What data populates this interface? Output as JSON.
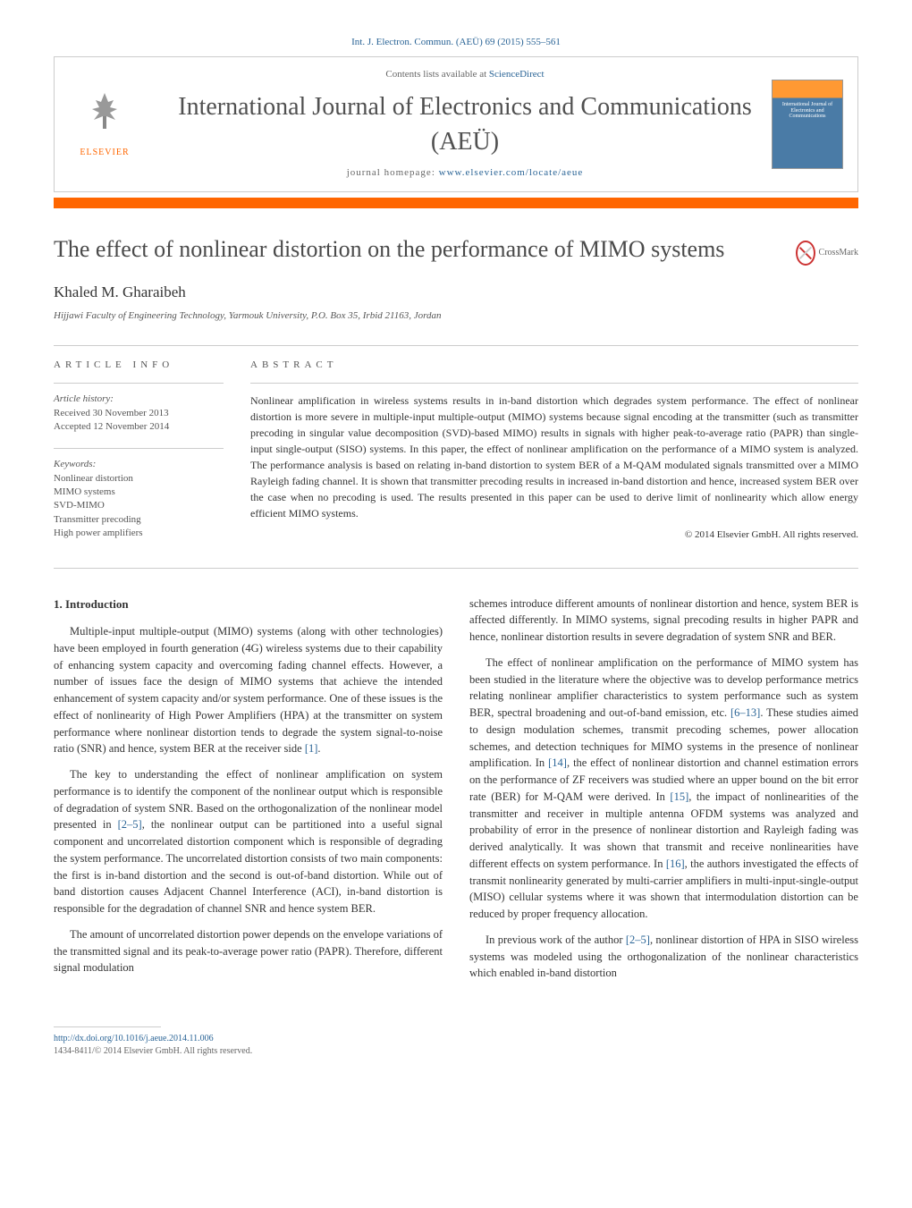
{
  "top_citation": "Int. J. Electron. Commun. (AEÜ) 69 (2015) 555–561",
  "header": {
    "contents_prefix": "Contents lists available at ",
    "contents_link": "ScienceDirect",
    "journal_name": "International Journal of Electronics and Communications (AEÜ)",
    "homepage_prefix": "journal homepage: ",
    "homepage_link": "www.elsevier.com/locate/aeue",
    "publisher": "ELSEVIER",
    "cover_text": "International Journal of Electronics and Communications"
  },
  "crossmark_label": "CrossMark",
  "title": "The effect of nonlinear distortion on the performance of MIMO systems",
  "author": "Khaled M. Gharaibeh",
  "affiliation": "Hijjawi Faculty of Engineering Technology, Yarmouk University, P.O. Box 35, Irbid 21163, Jordan",
  "article_info": {
    "heading": "ARTICLE INFO",
    "history_label": "Article history:",
    "received": "Received 30 November 2013",
    "accepted": "Accepted 12 November 2014",
    "keywords_label": "Keywords:",
    "keywords": [
      "Nonlinear distortion",
      "MIMO systems",
      "SVD-MIMO",
      "Transmitter precoding",
      "High power amplifiers"
    ]
  },
  "abstract": {
    "heading": "ABSTRACT",
    "text": "Nonlinear amplification in wireless systems results in in-band distortion which degrades system performance. The effect of nonlinear distortion is more severe in multiple-input multiple-output (MIMO) systems because signal encoding at the transmitter (such as transmitter precoding in singular value decomposition (SVD)-based MIMO) results in signals with higher peak-to-average ratio (PAPR) than single-input single-output (SISO) systems. In this paper, the effect of nonlinear amplification on the performance of a MIMO system is analyzed. The performance analysis is based on relating in-band distortion to system BER of a M-QAM modulated signals transmitted over a MIMO Rayleigh fading channel. It is shown that transmitter precoding results in increased in-band distortion and hence, increased system BER over the case when no precoding is used. The results presented in this paper can be used to derive limit of nonlinearity which allow energy efficient MIMO systems.",
    "copyright": "© 2014 Elsevier GmbH. All rights reserved."
  },
  "body": {
    "section_heading": "1. Introduction",
    "left_paragraphs": [
      "Multiple-input multiple-output (MIMO) systems (along with other technologies) have been employed in fourth generation (4G) wireless systems due to their capability of enhancing system capacity and overcoming fading channel effects. However, a number of issues face the design of MIMO systems that achieve the intended enhancement of system capacity and/or system performance. One of these issues is the effect of nonlinearity of High Power Amplifiers (HPA) at the transmitter on system performance where nonlinear distortion tends to degrade the system signal-to-noise ratio (SNR) and hence, system BER at the receiver side [1].",
      "The key to understanding the effect of nonlinear amplification on system performance is to identify the component of the nonlinear output which is responsible of degradation of system SNR. Based on the orthogonalization of the nonlinear model presented in [2–5], the nonlinear output can be partitioned into a useful signal component and uncorrelated distortion component which is responsible of degrading the system performance. The uncorrelated distortion consists of two main components: the first is in-band distortion and the second is out-of-band distortion. While out of band distortion causes Adjacent Channel Interference (ACI), in-band distortion is responsible for the degradation of channel SNR and hence system BER.",
      "The amount of uncorrelated distortion power depends on the envelope variations of the transmitted signal and its peak-to-average power ratio (PAPR). Therefore, different signal modulation"
    ],
    "right_paragraphs": [
      "schemes introduce different amounts of nonlinear distortion and hence, system BER is affected differently. In MIMO systems, signal precoding results in higher PAPR and hence, nonlinear distortion results in severe degradation of system SNR and BER.",
      "The effect of nonlinear amplification on the performance of MIMO system has been studied in the literature where the objective was to develop performance metrics relating nonlinear amplifier characteristics to system performance such as system BER, spectral broadening and out-of-band emission, etc. [6–13]. These studies aimed to design modulation schemes, transmit precoding schemes, power allocation schemes, and detection techniques for MIMO systems in the presence of nonlinear amplification. In [14], the effect of nonlinear distortion and channel estimation errors on the performance of ZF receivers was studied where an upper bound on the bit error rate (BER) for M-QAM were derived. In [15], the impact of nonlinearities of the transmitter and receiver in multiple antenna OFDM systems was analyzed and probability of error in the presence of nonlinear distortion and Rayleigh fading was derived analytically. It was shown that transmit and receive nonlinearities have different effects on system performance. In [16], the authors investigated the effects of transmit nonlinearity generated by multi-carrier amplifiers in multi-input-single-output (MISO) cellular systems where it was shown that intermodulation distortion can be reduced by proper frequency allocation.",
      "In previous work of the author [2–5], nonlinear distortion of HPA in SISO wireless systems was modeled using the orthogonalization of the nonlinear characteristics which enabled in-band distortion"
    ],
    "refs": {
      "r1": "[1]",
      "r2_5a": "[2–5]",
      "r6_13": "[6–13]",
      "r14": "[14]",
      "r15": "[15]",
      "r16": "[16]",
      "r2_5b": "[2–5]"
    }
  },
  "footer": {
    "doi": "http://dx.doi.org/10.1016/j.aeue.2014.11.006",
    "issn_line": "1434-8411/© 2014 Elsevier GmbH. All rights reserved."
  },
  "colors": {
    "orange": "#ff6600",
    "link": "#2a6496",
    "text": "#333333",
    "muted": "#666666",
    "border": "#cccccc"
  }
}
